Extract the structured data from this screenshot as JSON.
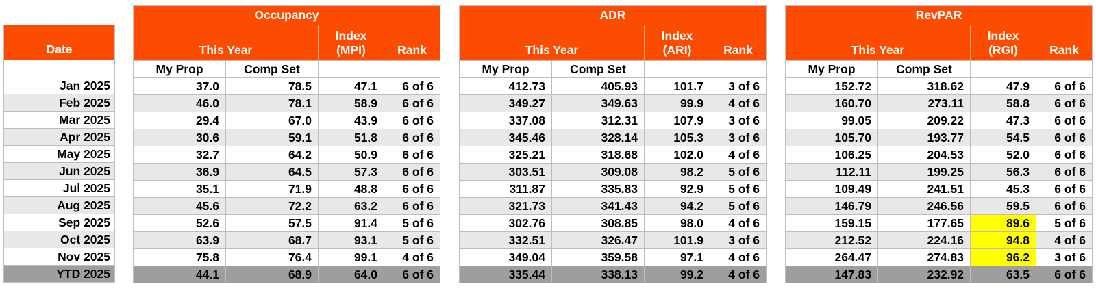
{
  "report": {
    "date_header": "Date",
    "this_year_label": "This Year",
    "index_label": "Index",
    "rank_label": "Rank",
    "my_prop_label": "My Prop",
    "comp_set_label": "Comp Set",
    "sections": [
      {
        "title": "Occupancy",
        "index_code": "(MPI)"
      },
      {
        "title": "ADR",
        "index_code": "(ARI)"
      },
      {
        "title": "RevPAR",
        "index_code": "(RGI)"
      }
    ],
    "colors": {
      "accent_orange": "#FC4C02",
      "alt_row_gray": "#E8E8E8",
      "ytd_row_gray": "#9E9E9E",
      "highlight_yellow": "#FFFF00",
      "grid_border": "#BDBDBD"
    },
    "rows": [
      {
        "date": "Jan 2025",
        "occupancy": [
          "37.0",
          "78.5",
          "47.1",
          "6 of 6"
        ],
        "adr": [
          "412.73",
          "405.93",
          "101.7",
          "3 of 6"
        ],
        "revpar": [
          "152.72",
          "318.62",
          "47.9",
          "6 of 6"
        ]
      },
      {
        "date": "Feb 2025",
        "occupancy": [
          "46.0",
          "78.1",
          "58.9",
          "6 of 6"
        ],
        "adr": [
          "349.27",
          "349.63",
          "99.9",
          "4 of 6"
        ],
        "revpar": [
          "160.70",
          "273.11",
          "58.8",
          "6 of 6"
        ]
      },
      {
        "date": "Mar 2025",
        "occupancy": [
          "29.4",
          "67.0",
          "43.9",
          "6 of 6"
        ],
        "adr": [
          "337.08",
          "312.31",
          "107.9",
          "3 of 6"
        ],
        "revpar": [
          "99.05",
          "209.22",
          "47.3",
          "6 of 6"
        ]
      },
      {
        "date": "Apr 2025",
        "occupancy": [
          "30.6",
          "59.1",
          "51.8",
          "6 of 6"
        ],
        "adr": [
          "345.46",
          "328.14",
          "105.3",
          "3 of 6"
        ],
        "revpar": [
          "105.70",
          "193.77",
          "54.5",
          "6 of 6"
        ]
      },
      {
        "date": "May 2025",
        "occupancy": [
          "32.7",
          "64.2",
          "50.9",
          "6 of 6"
        ],
        "adr": [
          "325.21",
          "318.68",
          "102.0",
          "4 of 6"
        ],
        "revpar": [
          "106.25",
          "204.53",
          "52.0",
          "6 of 6"
        ]
      },
      {
        "date": "Jun 2025",
        "occupancy": [
          "36.9",
          "64.5",
          "57.3",
          "6 of 6"
        ],
        "adr": [
          "303.51",
          "309.08",
          "98.2",
          "5 of 6"
        ],
        "revpar": [
          "112.11",
          "199.25",
          "56.3",
          "6 of 6"
        ]
      },
      {
        "date": "Jul 2025",
        "occupancy": [
          "35.1",
          "71.9",
          "48.8",
          "6 of 6"
        ],
        "adr": [
          "311.87",
          "335.83",
          "92.9",
          "5 of 6"
        ],
        "revpar": [
          "109.49",
          "241.51",
          "45.3",
          "6 of 6"
        ]
      },
      {
        "date": "Aug 2025",
        "occupancy": [
          "45.6",
          "72.2",
          "63.2",
          "6 of 6"
        ],
        "adr": [
          "321.73",
          "341.43",
          "94.2",
          "5 of 6"
        ],
        "revpar": [
          "146.79",
          "246.56",
          "59.5",
          "6 of 6"
        ]
      },
      {
        "date": "Sep 2025",
        "occupancy": [
          "52.6",
          "57.5",
          "91.4",
          "5 of 6"
        ],
        "adr": [
          "302.76",
          "308.85",
          "98.0",
          "4 of 6"
        ],
        "revpar": [
          "159.15",
          "177.65",
          "89.6",
          "5 of 6"
        ],
        "revpar_index_highlight": true
      },
      {
        "date": "Oct 2025",
        "occupancy": [
          "63.9",
          "68.7",
          "93.1",
          "5 of 6"
        ],
        "adr": [
          "332.51",
          "326.47",
          "101.9",
          "3 of 6"
        ],
        "revpar": [
          "212.52",
          "224.16",
          "94.8",
          "4 of 6"
        ],
        "revpar_index_highlight": true
      },
      {
        "date": "Nov 2025",
        "occupancy": [
          "75.8",
          "76.4",
          "99.1",
          "4 of 6"
        ],
        "adr": [
          "349.04",
          "359.58",
          "97.1",
          "4 of 6"
        ],
        "revpar": [
          "264.47",
          "274.83",
          "96.2",
          "3 of 6"
        ],
        "revpar_index_highlight": true
      },
      {
        "date": "YTD 2025",
        "occupancy": [
          "44.1",
          "68.9",
          "64.0",
          "6 of 6"
        ],
        "adr": [
          "335.44",
          "338.13",
          "99.2",
          "4 of 6"
        ],
        "revpar": [
          "147.83",
          "232.92",
          "63.5",
          "6 of 6"
        ],
        "is_ytd": true
      }
    ]
  }
}
